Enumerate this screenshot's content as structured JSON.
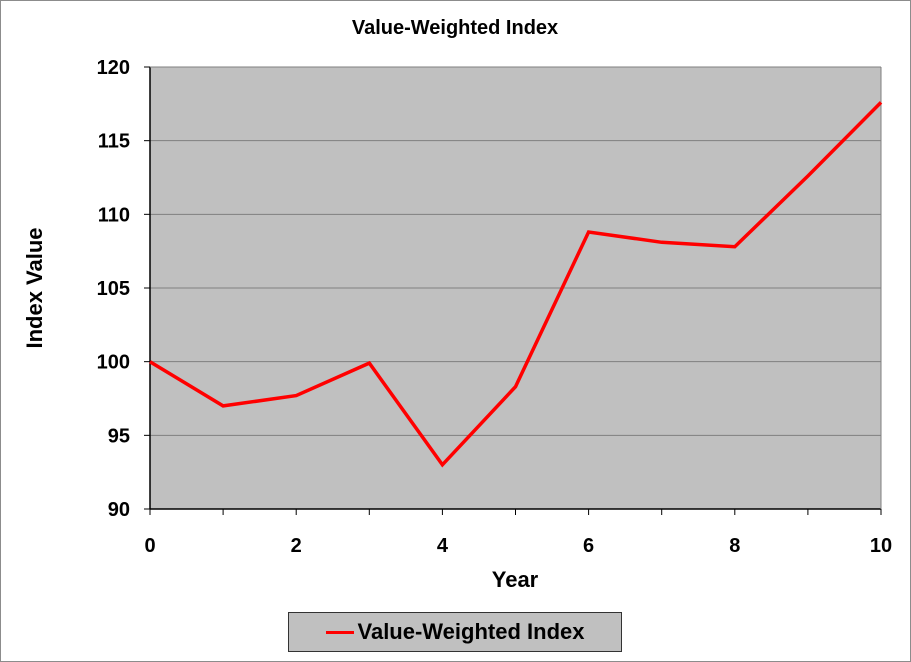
{
  "chart_data": {
    "type": "line",
    "title": "Value-Weighted Index",
    "xlabel": "Year",
    "ylabel": "Index Value",
    "xlim": [
      0,
      10
    ],
    "ylim": [
      90,
      120
    ],
    "x_ticks": [
      0,
      2,
      4,
      6,
      8,
      10
    ],
    "y_ticks": [
      90,
      95,
      100,
      105,
      110,
      115,
      120
    ],
    "grid": "horizontal",
    "legend_position": "bottom",
    "plot_background": "#c0c0c0",
    "series": [
      {
        "name": "Value-Weighted Index",
        "color": "#ff0000",
        "x": [
          0,
          1,
          2,
          3,
          4,
          5,
          6,
          7,
          8,
          9,
          10
        ],
        "y": [
          100,
          97,
          97.7,
          99.9,
          93,
          98.3,
          108.8,
          108.1,
          107.8,
          112.6,
          117.6
        ]
      }
    ]
  }
}
